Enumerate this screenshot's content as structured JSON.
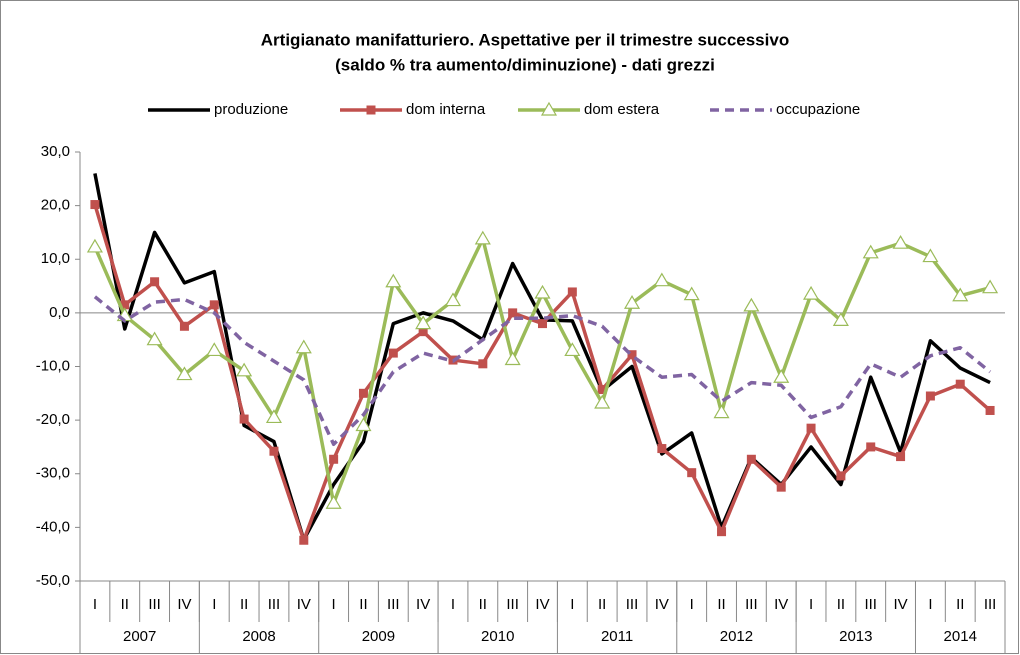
{
  "chart_data": {
    "type": "line",
    "title": "Artigianato manifatturiero. Aspettative per il trimestre successivo",
    "subtitle": "(saldo % tra aumento/diminuzione) - dati grezzi",
    "categories": [
      "I",
      "II",
      "III",
      "IV",
      "I",
      "II",
      "III",
      "IV",
      "I",
      "II",
      "III",
      "IV",
      "I",
      "II",
      "III",
      "IV",
      "I",
      "II",
      "III",
      "IV",
      "I",
      "II",
      "III",
      "IV",
      "I",
      "II",
      "III",
      "IV",
      "I",
      "II",
      "III"
    ],
    "year_groups": [
      {
        "label": "2007",
        "span": 4
      },
      {
        "label": "2008",
        "span": 4
      },
      {
        "label": "2009",
        "span": 4
      },
      {
        "label": "2010",
        "span": 4
      },
      {
        "label": "2011",
        "span": 4
      },
      {
        "label": "2012",
        "span": 4
      },
      {
        "label": "2013",
        "span": 4
      },
      {
        "label": "2014",
        "span": 3
      }
    ],
    "series": [
      {
        "name": "produzione",
        "color": "#000000",
        "marker": "none",
        "dash": "solid",
        "values": [
          26,
          -3,
          15,
          5.6,
          7.7,
          -21,
          -24,
          -42.3,
          -32,
          -24,
          -2,
          0,
          -1.5,
          -5,
          9.2,
          -1.3,
          -1.5,
          -14.5,
          -10,
          -26.3,
          -22.4,
          -40,
          -27,
          -32,
          -25,
          -32,
          -12,
          -26,
          -5.2,
          -10.3,
          -13
        ]
      },
      {
        "name": "dom interna",
        "color": "#c0504d",
        "marker": "square",
        "dash": "solid",
        "values": [
          20.2,
          1.5,
          5.8,
          -2.5,
          1.5,
          -19.8,
          -25.8,
          -42.4,
          -27.3,
          -15,
          -7.5,
          -3.5,
          -8.8,
          -9.5,
          0,
          -2,
          3.9,
          -14.3,
          -7.8,
          -25.3,
          -29.8,
          -40.8,
          -27.3,
          -32.5,
          -21.5,
          -30.4,
          -25,
          -26.8,
          -15.5,
          -13.3,
          -18.2
        ]
      },
      {
        "name": "dom estera",
        "color": "#9bbb59",
        "marker": "triangle",
        "dash": "solid",
        "values": [
          12.3,
          -0.5,
          -5,
          -11.5,
          -7,
          -10.8,
          -19.5,
          -6.5,
          -35.5,
          -21,
          5.8,
          -2,
          2.3,
          13.8,
          -8.7,
          3.7,
          -7,
          -16.8,
          1.8,
          6,
          3.4,
          -18.6,
          1.3,
          -12,
          3.5,
          -1.4,
          11.2,
          13,
          10.5,
          3.2,
          4.7
        ]
      },
      {
        "name": "occupazione",
        "color": "#8064a2",
        "marker": "none",
        "dash": "dashed",
        "values": [
          3,
          -1.5,
          2,
          2.5,
          0,
          -5.5,
          -9,
          -12.5,
          -24.5,
          -19,
          -11,
          -7.5,
          -9,
          -5,
          -1,
          -1,
          -0.5,
          -2.5,
          -8,
          -12,
          -11.5,
          -16.5,
          -13,
          -13.5,
          -19.5,
          -17.5,
          -9.5,
          -12,
          -8,
          -6.5,
          -11
        ]
      }
    ],
    "ylim": [
      -50,
      30
    ],
    "yticks": [
      {
        "value": -50,
        "label": "-50,0"
      },
      {
        "value": -40,
        "label": "-40,0"
      },
      {
        "value": -30,
        "label": "-30,0"
      },
      {
        "value": -20,
        "label": "-20,0"
      },
      {
        "value": -10,
        "label": "-10,0"
      },
      {
        "value": 0,
        "label": "0,0"
      },
      {
        "value": 10,
        "label": "10,0"
      },
      {
        "value": 20,
        "label": "20,0"
      },
      {
        "value": 30,
        "label": "30,0"
      }
    ],
    "legend": "top"
  }
}
